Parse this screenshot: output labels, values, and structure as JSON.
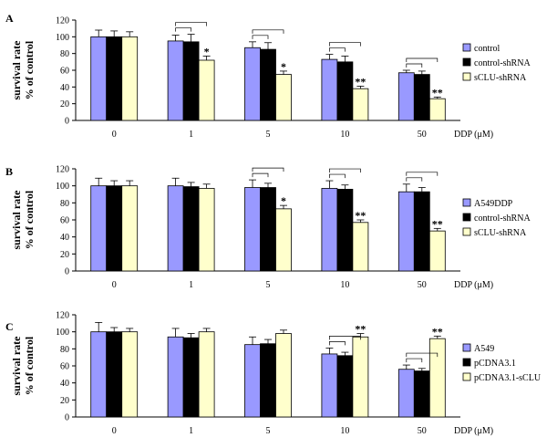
{
  "colors": {
    "series1": "#9999ff",
    "series2": "#000000",
    "series3": "#ffffcc"
  },
  "chart_data": [
    {
      "type": "bar",
      "panel_label": "A",
      "ylabel_lines": [
        "survival rate",
        "% of control"
      ],
      "xlabel": "DDP (μM)",
      "categories": [
        "0",
        "1",
        "5",
        "10",
        "50"
      ],
      "ylim": [
        0,
        120
      ],
      "yticks": [
        0,
        20,
        40,
        60,
        80,
        100,
        120
      ],
      "legend_position": "right",
      "series": [
        {
          "name": "control",
          "values": [
            100,
            95,
            87,
            73,
            57
          ],
          "errors": [
            8,
            7,
            7,
            6,
            3
          ]
        },
        {
          "name": "control-shRNA",
          "values": [
            100,
            94,
            85,
            70,
            55
          ],
          "errors": [
            7,
            9,
            8,
            7,
            4
          ]
        },
        {
          "name": "sCLU-shRNA",
          "values": [
            100,
            72,
            55,
            38,
            26
          ],
          "errors": [
            6,
            5,
            4,
            3,
            2
          ]
        }
      ],
      "significance": [
        "",
        "*",
        "*",
        "**",
        "**"
      ]
    },
    {
      "type": "bar",
      "panel_label": "B",
      "ylabel_lines": [
        "survival rate",
        "% of control"
      ],
      "xlabel": "DDP (μM)",
      "categories": [
        "0",
        "1",
        "5",
        "10",
        "50"
      ],
      "ylim": [
        0,
        120
      ],
      "yticks": [
        0,
        20,
        40,
        60,
        80,
        100,
        120
      ],
      "legend_position": "right",
      "series": [
        {
          "name": "A549DDP",
          "values": [
            100,
            100,
            98,
            97,
            93
          ],
          "errors": [
            9,
            9,
            9,
            9,
            9
          ]
        },
        {
          "name": "control-shRNA",
          "values": [
            100,
            99,
            98,
            96,
            93
          ],
          "errors": [
            6,
            5,
            5,
            5,
            5
          ]
        },
        {
          "name": "sCLU-shRNA",
          "values": [
            100,
            97,
            73,
            57,
            47
          ],
          "errors": [
            6,
            5,
            4,
            3,
            3
          ]
        }
      ],
      "significance": [
        "",
        "",
        "*",
        "**",
        "**"
      ]
    },
    {
      "type": "bar",
      "panel_label": "C",
      "ylabel_lines": [
        "survival rate",
        "% of control"
      ],
      "xlabel": "DDP (μM)",
      "categories": [
        "0",
        "1",
        "5",
        "10",
        "50"
      ],
      "ylim": [
        0,
        120
      ],
      "yticks": [
        0,
        20,
        40,
        60,
        80,
        100,
        120
      ],
      "legend_position": "right",
      "series": [
        {
          "name": "A549",
          "values": [
            100,
            94,
            85,
            74,
            56
          ],
          "errors": [
            11,
            10,
            9,
            7,
            5
          ]
        },
        {
          "name": "pCDNA3.1",
          "values": [
            100,
            93,
            86,
            72,
            54
          ],
          "errors": [
            5,
            5,
            5,
            4,
            3
          ]
        },
        {
          "name": "pCDNA3.1-sCLU",
          "values": [
            100,
            100,
            98,
            94,
            92
          ],
          "errors": [
            4,
            4,
            4,
            4,
            3
          ]
        }
      ],
      "significance": [
        "",
        "",
        "",
        "**",
        "**"
      ]
    }
  ]
}
